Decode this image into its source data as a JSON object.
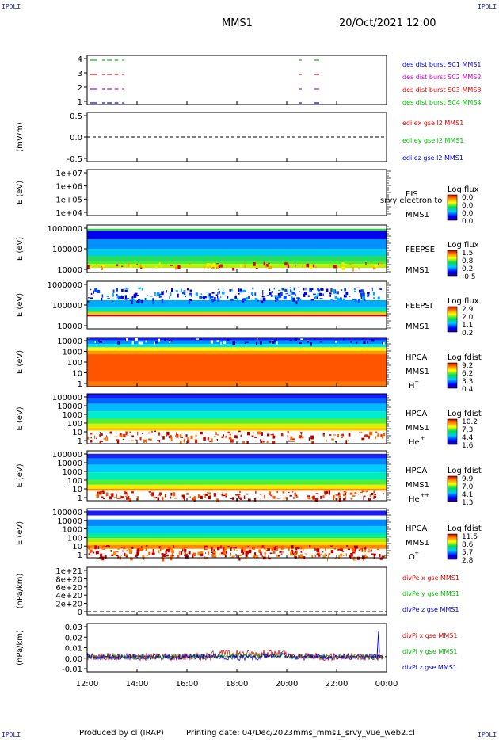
{
  "corners": {
    "tl": "IPDLI",
    "tr": "IPDLI",
    "bl": "IPDLI",
    "br": "IPDLI"
  },
  "header": {
    "title": "MMS1",
    "datetime": "20/Oct/2021 12:00"
  },
  "footer": {
    "produced": "Produced by cl (IRAP)",
    "printing": "Printing date: 04/Dec/2023",
    "file": "mms_mms1_srvy_vue_web2.cl"
  },
  "colors": {
    "blue": "#0000cc",
    "magenta": "#cc00cc",
    "red": "#dd0000",
    "green": "#00bb00",
    "black": "#000000"
  },
  "chart_data": {
    "type": "line",
    "time_axis": {
      "ticks": [
        "12:00",
        "14:00",
        "16:00",
        "18:00",
        "20:00",
        "22:00",
        "00:00"
      ],
      "range_hours": [
        12,
        24
      ]
    },
    "panels": [
      {
        "id": "burst",
        "yticks": [
          "4",
          "3",
          "2",
          "1"
        ],
        "legend": [
          {
            "text": "des dist burst SC1 MMS1",
            "color": "#0000cc"
          },
          {
            "text": "des dist burst SC2 MMS2",
            "color": "#cc00cc"
          },
          {
            "text": "des dist burst SC3 MMS3",
            "color": "#dd0000"
          },
          {
            "text": "des dist burst SC4 MMS4",
            "color": "#00bb00"
          }
        ],
        "intervals_hours": [
          [
            12.1,
            12.4
          ],
          [
            12.6,
            12.7
          ],
          [
            12.8,
            13.0
          ],
          [
            13.1,
            13.25
          ],
          [
            13.4,
            13.5
          ],
          [
            20.5,
            20.6
          ],
          [
            21.1,
            21.3
          ]
        ]
      },
      {
        "id": "edi",
        "ylabel": "(mV/m)",
        "yticks": [
          "0.5",
          "0.0",
          "-0.5"
        ],
        "legend": [
          {
            "text": "edi ex gse l2 MMS1",
            "color": "#dd0000"
          },
          {
            "text": "edi ey gse l2 MMS1",
            "color": "#00bb00"
          },
          {
            "text": "edi ez gse l2 MMS1",
            "color": "#0000cc"
          }
        ]
      },
      {
        "id": "eis",
        "ylabel": "E (eV)",
        "yticks": [
          "1e+07",
          "1e+06",
          "1e+05",
          "1e+04"
        ],
        "label1": "EIS",
        "label2": "MMS1",
        "overlay": "srvy electron to",
        "cbar_title": "Log flux",
        "cbar_ticks": [
          "0.0",
          "0.0",
          "0.0",
          "0.0"
        ]
      },
      {
        "id": "feepse",
        "ylabel": "E (eV)",
        "yticks": [
          "1000000",
          "100000",
          "10000"
        ],
        "label1": "FEEPSE",
        "label2": "MMS1",
        "cbar_title": "Log flux",
        "cbar_ticks": [
          "1.5",
          "0.8",
          "0.2",
          "-0.5"
        ]
      },
      {
        "id": "feepsi",
        "ylabel": "E (eV)",
        "yticks": [
          "1000000",
          "100000",
          "10000"
        ],
        "label1": "FEEPSI",
        "label2": "MMS1",
        "cbar_title": "Log flux",
        "cbar_ticks": [
          "2.9",
          "2.0",
          "1.1",
          "0.2"
        ]
      },
      {
        "id": "hpca_h",
        "ylabel": "E (eV)",
        "yticks": [
          "10000",
          "1000",
          "100",
          "10",
          "1"
        ],
        "label1": "HPCA",
        "label2": "MMS1",
        "species": "H",
        "sup": "+",
        "cbar_title": "Log fdist",
        "cbar_ticks": [
          "9.2",
          "6.2",
          "3.3",
          "0.4"
        ]
      },
      {
        "id": "hpca_he",
        "ylabel": "E (eV)",
        "yticks": [
          "100000",
          "10000",
          "1000",
          "100",
          "10",
          "1"
        ],
        "label1": "HPCA",
        "label2": "MMS1",
        "species": "He",
        "sup": "+",
        "cbar_title": "Log fdist",
        "cbar_ticks": [
          "10.2",
          "7.3",
          "4.4",
          "1.6"
        ]
      },
      {
        "id": "hpca_hepp",
        "ylabel": "E (eV)",
        "yticks": [
          "100000",
          "10000",
          "1000",
          "100",
          "10",
          "1"
        ],
        "label1": "HPCA",
        "label2": "MMS1",
        "species": "He",
        "sup": "++",
        "cbar_title": "Log fdist",
        "cbar_ticks": [
          "9.9",
          "7.0",
          "4.1",
          "1.3"
        ]
      },
      {
        "id": "hpca_o",
        "ylabel": "E (eV)",
        "yticks": [
          "100000",
          "10000",
          "1000",
          "100",
          "10",
          "1"
        ],
        "label1": "HPCA",
        "label2": "MMS1",
        "species": "O",
        "sup": "+",
        "cbar_title": "Log fdist",
        "cbar_ticks": [
          "11.5",
          "8.6",
          "5.7",
          "2.8"
        ]
      },
      {
        "id": "divpe",
        "ylabel": "(nPa/km)",
        "yticks": [
          "1e+21",
          "8e+20",
          "6e+20",
          "4e+20",
          "2e+20",
          "0"
        ],
        "legend": [
          {
            "text": "divPe x gse MMS1",
            "color": "#dd0000"
          },
          {
            "text": "divPe y gse MMS1",
            "color": "#00bb00"
          },
          {
            "text": "divPe z gse MMS1",
            "color": "#0000cc"
          }
        ]
      },
      {
        "id": "divpi",
        "ylabel": "(nPa/km)",
        "yticks": [
          "0.03",
          "0.02",
          "0.01",
          "0.00",
          "-0.01"
        ],
        "ylim": [
          -0.012,
          0.03
        ],
        "legend": [
          {
            "text": "divPi x gse MMS1",
            "color": "#dd0000"
          },
          {
            "text": "divPi y gse MMS1",
            "color": "#00bb00"
          },
          {
            "text": "divPi z gse MMS1",
            "color": "#0000cc"
          }
        ]
      }
    ]
  }
}
